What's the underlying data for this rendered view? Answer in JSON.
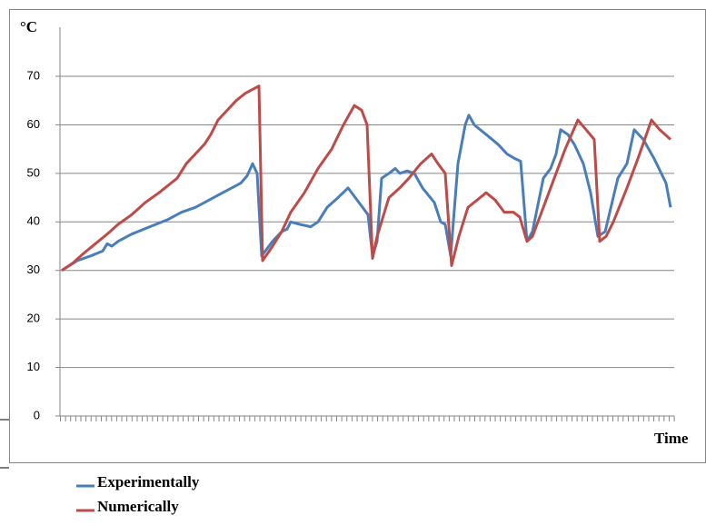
{
  "chart_data": {
    "type": "line",
    "y_label": "°C",
    "x_label": "Time",
    "xlim": [
      0,
      676
    ],
    "ylim": [
      0,
      80
    ],
    "yticks": [
      0,
      10,
      20,
      30,
      40,
      50,
      60,
      70
    ],
    "grid": true,
    "legend": "bottom-left",
    "series": [
      {
        "name": "Experimentally",
        "color": "#4a7ebb",
        "x": [
          2,
          19,
          34,
          47,
          52,
          57,
          64,
          79,
          99,
          119,
          134,
          149,
          164,
          179,
          189,
          199,
          206,
          212,
          217,
          222,
          234,
          244,
          250,
          254,
          264,
          276,
          284,
          294,
          306,
          317,
          329,
          339,
          344,
          349,
          354,
          362,
          369,
          374,
          382,
          390,
          399,
          412,
          419,
          424,
          430,
          438,
          446,
          450,
          456,
          469,
          482,
          492,
          501,
          507,
          514,
          520,
          532,
          540,
          546,
          551,
          559,
          566,
          576,
          584,
          592,
          600,
          614,
          624,
          632,
          642,
          654,
          667,
          672
        ],
        "values": [
          30,
          32,
          33,
          34,
          35.5,
          35,
          36,
          37.5,
          39,
          40.5,
          42,
          43,
          44.5,
          46,
          47,
          48,
          49.5,
          52,
          50,
          33,
          36,
          38,
          38.5,
          40,
          39.5,
          39,
          40,
          43,
          45,
          47,
          44,
          41.5,
          33,
          36,
          49,
          50,
          51,
          50,
          50.5,
          50,
          47,
          44,
          40,
          39.5,
          33,
          52,
          60,
          62,
          60,
          58,
          56,
          54,
          53,
          52.5,
          36,
          38,
          49,
          51,
          54,
          59,
          58,
          56,
          52,
          46,
          37,
          38,
          49,
          52,
          59,
          57,
          53,
          48,
          43
        ]
      },
      {
        "name": "Numerically",
        "color": "#be4b48",
        "x": [
          2,
          14,
          26,
          39,
          52,
          64,
          79,
          94,
          109,
          119,
          129,
          139,
          149,
          159,
          166,
          174,
          184,
          194,
          204,
          219,
          223,
          234,
          244,
          254,
          269,
          284,
          299,
          312,
          324,
          332,
          338,
          344,
          349,
          362,
          374,
          384,
          397,
          409,
          416,
          424,
          431,
          439,
          449,
          459,
          469,
          479,
          489,
          499,
          506,
          514,
          520,
          532,
          544,
          556,
          570,
          579,
          588,
          594,
          601,
          609,
          624,
          636,
          651,
          660,
          672
        ],
        "values": [
          30,
          31.5,
          33.5,
          35.5,
          37.5,
          39.5,
          41.5,
          44,
          46,
          47.5,
          49,
          52,
          54,
          56,
          58,
          61,
          63,
          65,
          66.5,
          68,
          32,
          35,
          38,
          42,
          46,
          51,
          55,
          60,
          64,
          63,
          60,
          32.5,
          37,
          45,
          47,
          49,
          52,
          54,
          52,
          50,
          31,
          37,
          43,
          44.5,
          46,
          44.5,
          42,
          42,
          41,
          36,
          37,
          43,
          49,
          55,
          61,
          59,
          57,
          36,
          37,
          40,
          47,
          53,
          61,
          59,
          57
        ]
      }
    ]
  }
}
